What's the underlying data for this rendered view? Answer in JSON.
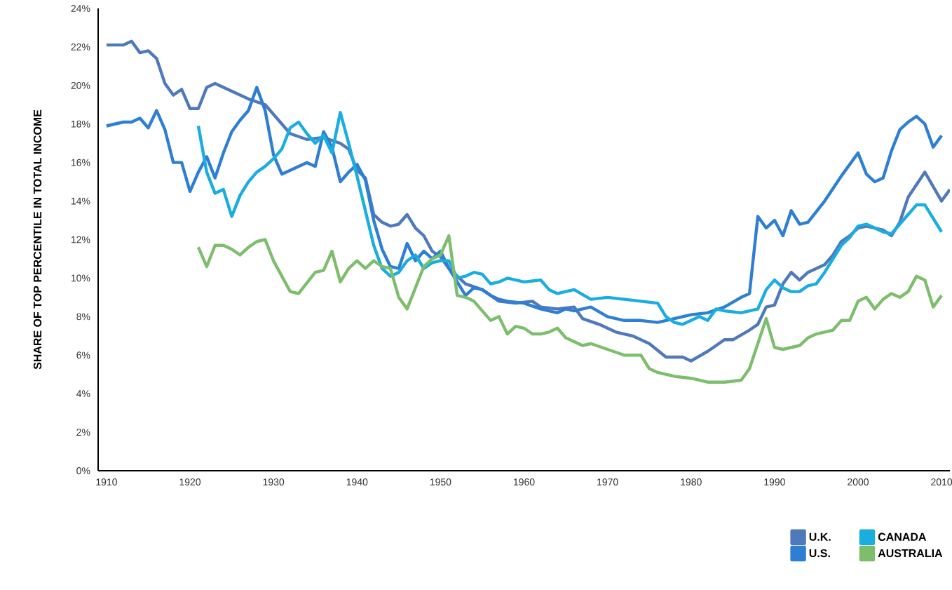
{
  "chart_data": {
    "type": "line",
    "ylabel": "SHARE OF TOP PERCENTILE IN TOTAL INCOME",
    "xlim": [
      1909,
      2011
    ],
    "ylim": [
      0,
      24
    ],
    "xticks": [
      1910,
      1920,
      1930,
      1940,
      1950,
      1960,
      1970,
      1980,
      1990,
      2000,
      2010
    ],
    "yticks": [
      {
        "value": 0,
        "label": "0%"
      },
      {
        "value": 2,
        "label": "2%"
      },
      {
        "value": 4,
        "label": "4%"
      },
      {
        "value": 6,
        "label": "6%"
      },
      {
        "value": 8,
        "label": "8%"
      },
      {
        "value": 10,
        "label": "10%"
      },
      {
        "value": 12,
        "label": "12%"
      },
      {
        "value": 14,
        "label": "14%"
      },
      {
        "value": 16,
        "label": "16%"
      },
      {
        "value": 18,
        "label": "18%"
      },
      {
        "value": 20,
        "label": "20%"
      },
      {
        "value": 22,
        "label": "22%"
      },
      {
        "value": 24,
        "label": "24%"
      }
    ],
    "grid": false,
    "legend": "bottom right",
    "marker": "none",
    "line_style": "solid",
    "series": [
      {
        "name": "U.K.",
        "color": "#4f79bb",
        "x": [
          1910,
          1912,
          1913,
          1914,
          1915,
          1916,
          1917,
          1918,
          1919,
          1920,
          1921,
          1922,
          1923,
          1925,
          1927,
          1929,
          1930,
          1932,
          1934,
          1936,
          1938,
          1939,
          1940,
          1941,
          1942,
          1943,
          1944,
          1945,
          1946,
          1947,
          1948,
          1949,
          1950,
          1951,
          1953,
          1955,
          1957,
          1959,
          1961,
          1962,
          1964,
          1966,
          1967,
          1969,
          1971,
          1973,
          1975,
          1977,
          1979,
          1980,
          1982,
          1984,
          1985,
          1987,
          1988,
          1989,
          1990,
          1991,
          1992,
          1993,
          1994,
          1996,
          1997,
          1998,
          1999,
          2000,
          2001,
          2003,
          2004,
          2005,
          2006,
          2008,
          2010,
          2011
        ],
        "values": [
          22.1,
          22.1,
          22.3,
          21.7,
          21.8,
          21.4,
          20.1,
          19.5,
          19.8,
          18.8,
          18.8,
          19.9,
          20.1,
          19.7,
          19.3,
          19.0,
          18.5,
          17.5,
          17.2,
          17.3,
          17.0,
          16.7,
          15.6,
          15.2,
          13.3,
          12.9,
          12.7,
          12.8,
          13.3,
          12.6,
          12.2,
          11.4,
          11.1,
          10.5,
          9.7,
          9.4,
          8.8,
          8.7,
          8.8,
          8.5,
          8.4,
          8.5,
          7.9,
          7.6,
          7.2,
          7.0,
          6.6,
          5.9,
          5.9,
          5.7,
          6.2,
          6.8,
          6.8,
          7.3,
          7.6,
          8.5,
          8.6,
          9.7,
          10.3,
          9.9,
          10.3,
          10.7,
          11.2,
          11.9,
          12.2,
          12.6,
          12.7,
          12.5,
          12.2,
          12.9,
          14.2,
          15.5,
          14.0,
          14.6
        ]
      },
      {
        "name": "U.S.",
        "color": "#2e7fd4",
        "x": [
          1910,
          1912,
          1913,
          1914,
          1915,
          1916,
          1917,
          1918,
          1919,
          1920,
          1921,
          1922,
          1923,
          1924,
          1925,
          1926,
          1927,
          1928,
          1929,
          1930,
          1931,
          1932,
          1933,
          1934,
          1935,
          1936,
          1937,
          1938,
          1939,
          1940,
          1941,
          1942,
          1943,
          1944,
          1945,
          1946,
          1947,
          1948,
          1949,
          1950,
          1951,
          1952,
          1953,
          1954,
          1955,
          1956,
          1957,
          1958,
          1960,
          1962,
          1964,
          1965,
          1966,
          1968,
          1970,
          1972,
          1974,
          1976,
          1978,
          1980,
          1982,
          1984,
          1986,
          1987,
          1988,
          1989,
          1990,
          1991,
          1992,
          1993,
          1994,
          1996,
          1998,
          2000,
          2001,
          2002,
          2003,
          2004,
          2005,
          2006,
          2007,
          2008,
          2009,
          2010
        ],
        "values": [
          17.9,
          18.1,
          18.1,
          18.3,
          17.8,
          18.7,
          17.7,
          16.0,
          16.0,
          14.5,
          15.5,
          16.3,
          15.2,
          16.5,
          17.6,
          18.2,
          18.7,
          19.9,
          18.7,
          16.4,
          15.4,
          15.6,
          15.8,
          16.0,
          15.8,
          17.6,
          16.8,
          15.0,
          15.5,
          15.9,
          15.1,
          13.0,
          11.5,
          10.6,
          10.5,
          11.8,
          10.9,
          11.4,
          11.0,
          11.4,
          10.5,
          9.8,
          9.1,
          9.5,
          9.4,
          9.1,
          8.9,
          8.8,
          8.7,
          8.4,
          8.2,
          8.4,
          8.3,
          8.5,
          8.0,
          7.8,
          7.8,
          7.7,
          7.9,
          8.1,
          8.2,
          8.5,
          9.0,
          9.2,
          13.2,
          12.6,
          13.0,
          12.2,
          13.5,
          12.8,
          12.9,
          14.0,
          15.3,
          16.5,
          15.4,
          15.0,
          15.2,
          16.6,
          17.7,
          18.1,
          18.4,
          18.0,
          16.8,
          17.4
        ]
      },
      {
        "name": "CANADA",
        "color": "#19ade0",
        "x": [
          1921,
          1922,
          1923,
          1924,
          1925,
          1926,
          1927,
          1928,
          1929,
          1930,
          1931,
          1932,
          1933,
          1934,
          1935,
          1936,
          1937,
          1938,
          1939,
          1940,
          1941,
          1942,
          1943,
          1944,
          1945,
          1946,
          1947,
          1948,
          1949,
          1950,
          1951,
          1952,
          1953,
          1954,
          1955,
          1956,
          1957,
          1958,
          1960,
          1962,
          1963,
          1964,
          1966,
          1968,
          1970,
          1972,
          1974,
          1976,
          1977,
          1978,
          1979,
          1980,
          1981,
          1982,
          1983,
          1984,
          1986,
          1988,
          1989,
          1990,
          1991,
          1992,
          1993,
          1994,
          1995,
          1996,
          1997,
          1998,
          1999,
          2000,
          2001,
          2002,
          2003,
          2004,
          2005,
          2006,
          2007,
          2008,
          2009,
          2010
        ],
        "values": [
          17.9,
          15.5,
          14.4,
          14.6,
          13.2,
          14.3,
          15.0,
          15.5,
          15.8,
          16.2,
          16.7,
          17.8,
          18.1,
          17.5,
          17.0,
          17.4,
          16.5,
          18.6,
          17.0,
          15.3,
          13.5,
          11.7,
          10.5,
          10.1,
          10.3,
          10.9,
          11.2,
          10.5,
          10.8,
          10.9,
          10.9,
          10.0,
          10.1,
          10.3,
          10.2,
          9.7,
          9.8,
          10.0,
          9.8,
          9.9,
          9.4,
          9.2,
          9.4,
          8.9,
          9.0,
          8.9,
          8.8,
          8.7,
          8.0,
          7.7,
          7.6,
          7.8,
          8.0,
          7.8,
          8.4,
          8.3,
          8.2,
          8.4,
          9.4,
          9.9,
          9.5,
          9.3,
          9.3,
          9.6,
          9.7,
          10.3,
          11.0,
          11.7,
          12.1,
          12.7,
          12.8,
          12.6,
          12.4,
          12.3,
          12.8,
          13.3,
          13.8,
          13.8,
          13.1,
          12.4
        ]
      },
      {
        "name": "AUSTRALIA",
        "color": "#7dbe6d",
        "x": [
          1921,
          1922,
          1923,
          1924,
          1925,
          1926,
          1927,
          1928,
          1929,
          1930,
          1932,
          1933,
          1935,
          1936,
          1937,
          1938,
          1939,
          1940,
          1941,
          1942,
          1943,
          1944,
          1945,
          1946,
          1947,
          1948,
          1949,
          1950,
          1951,
          1952,
          1953,
          1954,
          1955,
          1956,
          1957,
          1958,
          1959,
          1960,
          1961,
          1962,
          1963,
          1964,
          1965,
          1966,
          1967,
          1968,
          1970,
          1972,
          1974,
          1975,
          1976,
          1978,
          1980,
          1982,
          1984,
          1986,
          1987,
          1988,
          1989,
          1990,
          1991,
          1992,
          1993,
          1994,
          1995,
          1996,
          1997,
          1998,
          1999,
          2000,
          2001,
          2002,
          2003,
          2004,
          2005,
          2006,
          2007,
          2008,
          2009,
          2010
        ],
        "values": [
          11.6,
          10.6,
          11.7,
          11.7,
          11.5,
          11.2,
          11.6,
          11.9,
          12.0,
          10.9,
          9.3,
          9.2,
          10.3,
          10.4,
          11.4,
          9.8,
          10.5,
          10.9,
          10.5,
          10.9,
          10.6,
          10.5,
          9.0,
          8.4,
          9.5,
          10.6,
          11.0,
          11.2,
          12.2,
          9.1,
          9.0,
          8.8,
          8.3,
          7.8,
          8.0,
          7.1,
          7.5,
          7.4,
          7.1,
          7.1,
          7.2,
          7.4,
          6.9,
          6.7,
          6.5,
          6.6,
          6.3,
          6.0,
          6.0,
          5.3,
          5.1,
          4.9,
          4.8,
          4.6,
          4.6,
          4.7,
          5.3,
          6.6,
          7.9,
          6.4,
          6.3,
          6.4,
          6.5,
          6.9,
          7.1,
          7.2,
          7.3,
          7.8,
          7.8,
          8.8,
          9.0,
          8.4,
          8.9,
          9.2,
          9.0,
          9.3,
          10.1,
          9.9,
          8.5,
          9.1
        ]
      }
    ]
  }
}
